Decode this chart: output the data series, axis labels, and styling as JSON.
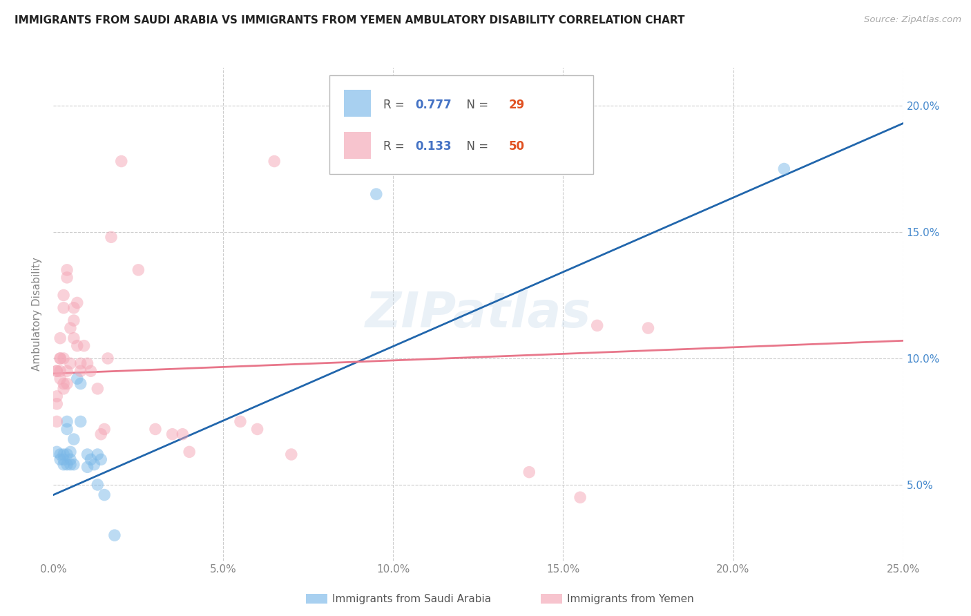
{
  "title": "IMMIGRANTS FROM SAUDI ARABIA VS IMMIGRANTS FROM YEMEN AMBULATORY DISABILITY CORRELATION CHART",
  "source": "Source: ZipAtlas.com",
  "ylabel": "Ambulatory Disability",
  "xlim": [
    0,
    0.25
  ],
  "ylim": [
    0.02,
    0.215
  ],
  "yticks": [
    0.05,
    0.1,
    0.15,
    0.2
  ],
  "ytick_labels": [
    "5.0%",
    "10.0%",
    "15.0%",
    "20.0%"
  ],
  "xticks": [
    0.0,
    0.05,
    0.1,
    0.15,
    0.2,
    0.25
  ],
  "xtick_labels": [
    "0.0%",
    "5.0%",
    "10.0%",
    "15.0%",
    "20.0%",
    "25.0%"
  ],
  "watermark": "ZIPatlas",
  "saudi_color": "#7ab8e8",
  "yemen_color": "#f4a5b5",
  "blue_line_color": "#2166ac",
  "pink_line_color": "#e8768a",
  "saudi_R": "0.777",
  "saudi_N": "29",
  "yemen_R": "0.133",
  "yemen_N": "50",
  "saudi_label": "Immigrants from Saudi Arabia",
  "yemen_label": "Immigrants from Yemen",
  "saudi_points": [
    [
      0.001,
      0.063
    ],
    [
      0.002,
      0.062
    ],
    [
      0.002,
      0.06
    ],
    [
      0.003,
      0.062
    ],
    [
      0.003,
      0.058
    ],
    [
      0.003,
      0.06
    ],
    [
      0.004,
      0.058
    ],
    [
      0.004,
      0.062
    ],
    [
      0.004,
      0.075
    ],
    [
      0.004,
      0.072
    ],
    [
      0.005,
      0.06
    ],
    [
      0.005,
      0.058
    ],
    [
      0.005,
      0.063
    ],
    [
      0.006,
      0.068
    ],
    [
      0.006,
      0.058
    ],
    [
      0.007,
      0.092
    ],
    [
      0.008,
      0.09
    ],
    [
      0.008,
      0.075
    ],
    [
      0.01,
      0.062
    ],
    [
      0.01,
      0.057
    ],
    [
      0.011,
      0.06
    ],
    [
      0.012,
      0.058
    ],
    [
      0.013,
      0.062
    ],
    [
      0.013,
      0.05
    ],
    [
      0.014,
      0.06
    ],
    [
      0.015,
      0.046
    ],
    [
      0.018,
      0.03
    ],
    [
      0.095,
      0.165
    ],
    [
      0.215,
      0.175
    ]
  ],
  "yemen_points": [
    [
      0.001,
      0.082
    ],
    [
      0.001,
      0.085
    ],
    [
      0.001,
      0.075
    ],
    [
      0.001,
      0.095
    ],
    [
      0.001,
      0.095
    ],
    [
      0.002,
      0.095
    ],
    [
      0.002,
      0.092
    ],
    [
      0.002,
      0.1
    ],
    [
      0.002,
      0.1
    ],
    [
      0.002,
      0.108
    ],
    [
      0.003,
      0.12
    ],
    [
      0.003,
      0.125
    ],
    [
      0.003,
      0.088
    ],
    [
      0.003,
      0.1
    ],
    [
      0.003,
      0.09
    ],
    [
      0.004,
      0.095
    ],
    [
      0.004,
      0.09
    ],
    [
      0.004,
      0.132
    ],
    [
      0.004,
      0.135
    ],
    [
      0.005,
      0.112
    ],
    [
      0.005,
      0.098
    ],
    [
      0.006,
      0.115
    ],
    [
      0.006,
      0.12
    ],
    [
      0.006,
      0.108
    ],
    [
      0.007,
      0.122
    ],
    [
      0.007,
      0.105
    ],
    [
      0.008,
      0.098
    ],
    [
      0.008,
      0.095
    ],
    [
      0.009,
      0.105
    ],
    [
      0.01,
      0.098
    ],
    [
      0.011,
      0.095
    ],
    [
      0.013,
      0.088
    ],
    [
      0.014,
      0.07
    ],
    [
      0.015,
      0.072
    ],
    [
      0.016,
      0.1
    ],
    [
      0.017,
      0.148
    ],
    [
      0.02,
      0.178
    ],
    [
      0.025,
      0.135
    ],
    [
      0.03,
      0.072
    ],
    [
      0.035,
      0.07
    ],
    [
      0.038,
      0.07
    ],
    [
      0.04,
      0.063
    ],
    [
      0.055,
      0.075
    ],
    [
      0.06,
      0.072
    ],
    [
      0.065,
      0.178
    ],
    [
      0.07,
      0.062
    ],
    [
      0.14,
      0.055
    ],
    [
      0.16,
      0.113
    ],
    [
      0.155,
      0.045
    ],
    [
      0.175,
      0.112
    ]
  ],
  "blue_line": [
    0.0,
    0.046,
    0.25,
    0.193
  ],
  "pink_line": [
    0.0,
    0.094,
    0.25,
    0.107
  ],
  "grid_color": "#cccccc",
  "bg_color": "#ffffff",
  "tick_color": "#4488cc",
  "title_color": "#222222",
  "label_color": "#888888",
  "r_color": "#4472c4",
  "n_color": "#e05020"
}
